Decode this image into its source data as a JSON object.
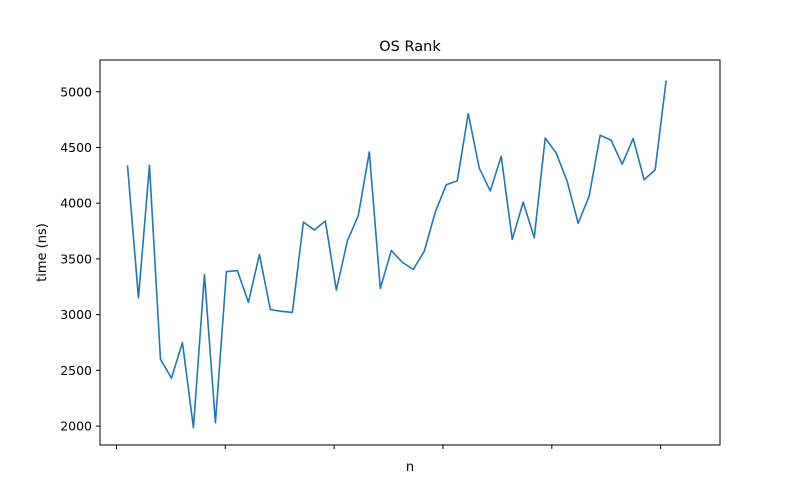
{
  "chart_data": {
    "type": "line",
    "title": "OS Rank",
    "xlabel": "n",
    "ylabel": "time (ns)",
    "ylim": [
      1830,
      5285
    ],
    "xlim": [
      0,
      56.4
    ],
    "grid": false,
    "x_ticks_labeled": false,
    "x_tick_count": 6,
    "y_ticks": [
      2000,
      2500,
      3000,
      3500,
      4000,
      4500,
      5000
    ],
    "y_tick_labels": [
      "2000",
      "2500",
      "3000",
      "3500",
      "4000",
      "4500",
      "5000"
    ],
    "line_color": "#1f77b4",
    "series": [
      {
        "values": [
          4340,
          3150,
          4340,
          2600,
          2430,
          2750,
          1985,
          3360,
          2030,
          3385,
          3395,
          3110,
          3540,
          3045,
          3030,
          3020,
          3830,
          3760,
          3840,
          3220,
          3660,
          3890,
          4460,
          3235,
          3575,
          3470,
          3405,
          3570,
          3920,
          4165,
          4200,
          4805,
          4315,
          4110,
          4420,
          3675,
          4010,
          3690,
          4585,
          4450,
          4195,
          3820,
          4065,
          4610,
          4565,
          4350,
          4580,
          4210,
          4300,
          5100
        ]
      }
    ]
  }
}
